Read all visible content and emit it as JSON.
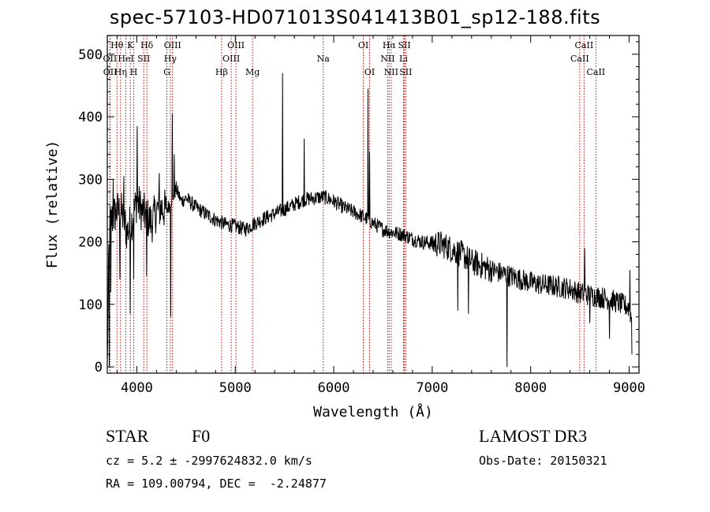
{
  "title": "spec-57103-HD071013S041413B01_sp12-188.fits",
  "info": {
    "class_label": "STAR",
    "subclass": "F0",
    "survey": "LAMOST DR3",
    "cz": "cz = 5.2 ± -2997624832.0 km/s",
    "obs_date": "Obs-Date: 20150321",
    "radec": "RA = 109.00794, DEC =  -2.24877"
  },
  "chart_data": {
    "type": "line",
    "xlabel": "Wavelength (Å)",
    "ylabel": "Flux (relative)",
    "xlim": [
      3700,
      9100
    ],
    "ylim": [
      -10,
      530
    ],
    "xticks": [
      4000,
      5000,
      6000,
      7000,
      8000,
      9000
    ],
    "yticks": [
      0,
      100,
      200,
      300,
      400,
      500
    ],
    "line_color": "#000000",
    "marker_color": "#cc0000",
    "lines": [
      {
        "label": "Hθ",
        "wave": 3798,
        "row": 0
      },
      {
        "label": "OII",
        "wave": 3727,
        "row": 1
      },
      {
        "label": "OII",
        "wave": 3729,
        "row": 2
      },
      {
        "label": "Hη",
        "wave": 3835,
        "row": 2
      },
      {
        "label": "HeI",
        "wave": 3889,
        "row": 1
      },
      {
        "label": "K",
        "wave": 3934,
        "row": 0
      },
      {
        "label": "H",
        "wave": 3969,
        "row": 2
      },
      {
        "label": "SII",
        "wave": 4070,
        "row": 1
      },
      {
        "label": "Hδ",
        "wave": 4102,
        "row": 0
      },
      {
        "label": "G",
        "wave": 4305,
        "row": 2
      },
      {
        "label": "OIII",
        "wave": 4363,
        "row": 0
      },
      {
        "label": "Hγ",
        "wave": 4340,
        "row": 1
      },
      {
        "label": "Hβ",
        "wave": 4861,
        "row": 2
      },
      {
        "label": "OIII",
        "wave": 4959,
        "row": 1
      },
      {
        "label": "OIII",
        "wave": 5007,
        "row": 0
      },
      {
        "label": "Mg",
        "wave": 5175,
        "row": 2
      },
      {
        "label": "Na",
        "wave": 5893,
        "row": 1
      },
      {
        "label": "OI",
        "wave": 6300,
        "row": 0
      },
      {
        "label": "OI",
        "wave": 6364,
        "row": 2
      },
      {
        "label": "NII",
        "wave": 6548,
        "row": 1
      },
      {
        "label": "Hα",
        "wave": 6563,
        "row": 0
      },
      {
        "label": "NII",
        "wave": 6583,
        "row": 2
      },
      {
        "label": "SII",
        "wave": 6717,
        "row": 0
      },
      {
        "label": "Li",
        "wave": 6708,
        "row": 1
      },
      {
        "label": "SII",
        "wave": 6731,
        "row": 2
      },
      {
        "label": "CaII",
        "wave": 8498,
        "row": 1
      },
      {
        "label": "CaII",
        "wave": 8542,
        "row": 0
      },
      {
        "label": "CaII",
        "wave": 8662,
        "row": 2
      }
    ],
    "spectrum_anchors": {
      "x": [
        3700,
        3720,
        3760,
        3800,
        3850,
        3900,
        3950,
        4000,
        4050,
        4100,
        4150,
        4200,
        4250,
        4300,
        4350,
        4400,
        4450,
        4500,
        4600,
        4700,
        4800,
        4900,
        5000,
        5100,
        5200,
        5300,
        5400,
        5500,
        5600,
        5700,
        5800,
        5900,
        6000,
        6100,
        6200,
        6300,
        6400,
        6500,
        6600,
        6700,
        6800,
        6900,
        7000,
        7100,
        7200,
        7300,
        7400,
        7500,
        7600,
        7700,
        7800,
        7900,
        8000,
        8100,
        8200,
        8300,
        8400,
        8500,
        8600,
        8700,
        8800,
        8900,
        9000,
        9100
      ],
      "y": [
        0,
        230,
        240,
        250,
        245,
        215,
        235,
        265,
        250,
        240,
        230,
        250,
        255,
        250,
        265,
        285,
        265,
        270,
        255,
        245,
        235,
        228,
        225,
        220,
        230,
        238,
        245,
        252,
        260,
        268,
        270,
        272,
        265,
        255,
        248,
        240,
        230,
        220,
        215,
        212,
        205,
        200,
        198,
        196,
        188,
        180,
        168,
        162,
        155,
        150,
        145,
        140,
        135,
        132,
        130,
        128,
        125,
        118,
        115,
        112,
        108,
        102,
        95,
        20
      ]
    },
    "spectrum_features": [
      {
        "wave": 3720,
        "flux": 0
      },
      {
        "wave": 3736,
        "flux": 120
      },
      {
        "wave": 3760,
        "flux": 300
      },
      {
        "wave": 3830,
        "flux": 140
      },
      {
        "wave": 3870,
        "flux": 305
      },
      {
        "wave": 3934,
        "flux": 85
      },
      {
        "wave": 3969,
        "flux": 140
      },
      {
        "wave": 4005,
        "flux": 385
      },
      {
        "wave": 4102,
        "flux": 145
      },
      {
        "wave": 4230,
        "flux": 310
      },
      {
        "wave": 4345,
        "flux": 80
      },
      {
        "wave": 4362,
        "flux": 405
      },
      {
        "wave": 4380,
        "flux": 340
      },
      {
        "wave": 5480,
        "flux": 470
      },
      {
        "wave": 5700,
        "flux": 365
      },
      {
        "wave": 6350,
        "flux": 445
      },
      {
        "wave": 6365,
        "flux": 345
      },
      {
        "wave": 7260,
        "flux": 90
      },
      {
        "wave": 7370,
        "flux": 85
      },
      {
        "wave": 7759,
        "flux": 0
      },
      {
        "wave": 8550,
        "flux": 190
      },
      {
        "wave": 8600,
        "flux": 70
      },
      {
        "wave": 8800,
        "flux": 45
      },
      {
        "wave": 9010,
        "flux": 155
      },
      {
        "wave": 9030,
        "flux": 20
      }
    ]
  }
}
